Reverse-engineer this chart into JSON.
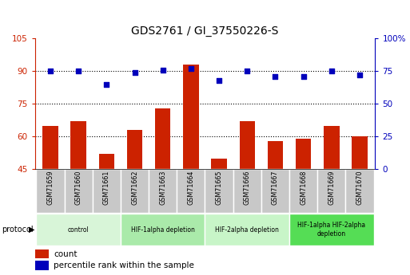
{
  "title": "GDS2761 / GI_37550226-S",
  "samples": [
    "GSM71659",
    "GSM71660",
    "GSM71661",
    "GSM71662",
    "GSM71663",
    "GSM71664",
    "GSM71665",
    "GSM71666",
    "GSM71667",
    "GSM71668",
    "GSM71669",
    "GSM71670"
  ],
  "counts": [
    65,
    67,
    52,
    63,
    73,
    93,
    50,
    67,
    58,
    59,
    65,
    60
  ],
  "percentile_ranks": [
    75,
    75,
    65,
    74,
    76,
    77,
    68,
    75,
    71,
    71,
    75,
    72
  ],
  "ylim_left": [
    45,
    105
  ],
  "ylim_right": [
    0,
    100
  ],
  "yticks_left": [
    45,
    60,
    75,
    90,
    105
  ],
  "yticks_right": [
    0,
    25,
    50,
    75,
    100
  ],
  "bar_color": "#cc2200",
  "dot_color": "#0000bb",
  "protocol_groups": [
    {
      "label": "control",
      "start": 0,
      "end": 3,
      "color": "#d8f5d8"
    },
    {
      "label": "HIF-1alpha depletion",
      "start": 3,
      "end": 6,
      "color": "#aaeaaa"
    },
    {
      "label": "HIF-2alpha depletion",
      "start": 6,
      "end": 9,
      "color": "#c8f5c8"
    },
    {
      "label": "HIF-1alpha HIF-2alpha\ndepletion",
      "start": 9,
      "end": 12,
      "color": "#55dd55"
    }
  ],
  "protocol_label": "protocol",
  "legend_count_label": "count",
  "legend_percentile_label": "percentile rank within the sample",
  "bar_width": 0.55,
  "sample_box_color": "#c8c8c8",
  "grid_yticks": [
    60,
    75,
    90
  ]
}
